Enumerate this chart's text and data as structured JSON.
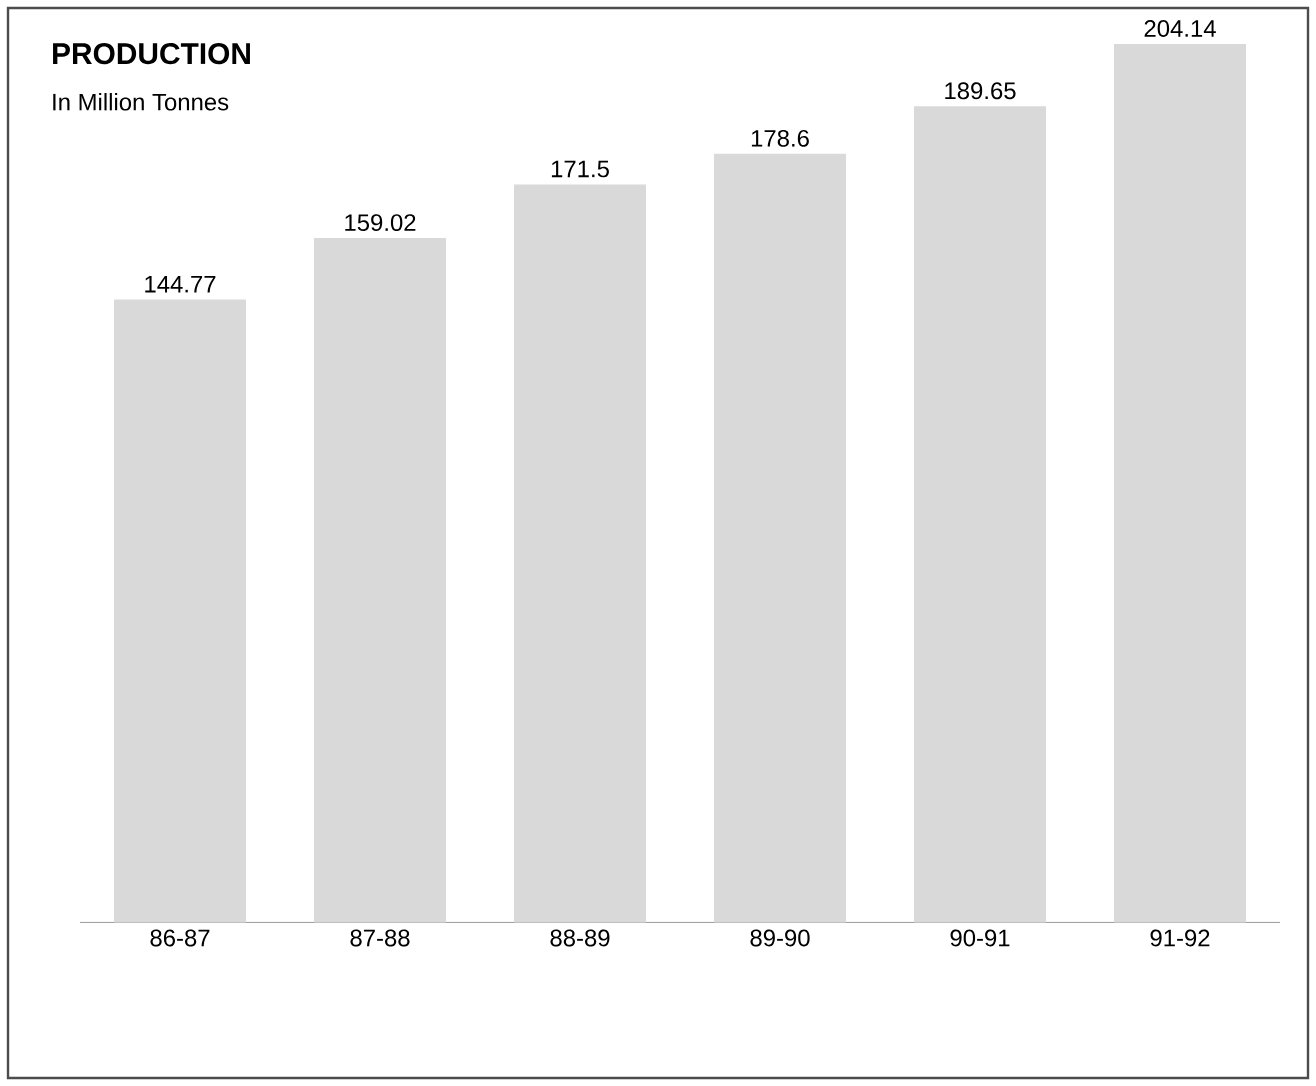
{
  "chart_data": {
    "type": "bar",
    "title": "PRODUCTION",
    "subtitle": "In Million Tonnes",
    "categories": [
      "86-87",
      "87-88",
      "88-89",
      "89-90",
      "90-91",
      "91-92"
    ],
    "values": [
      144.77,
      159.02,
      171.5,
      178.6,
      189.65,
      204.14
    ],
    "color": "#d9d9d9",
    "data_labels": true
  }
}
